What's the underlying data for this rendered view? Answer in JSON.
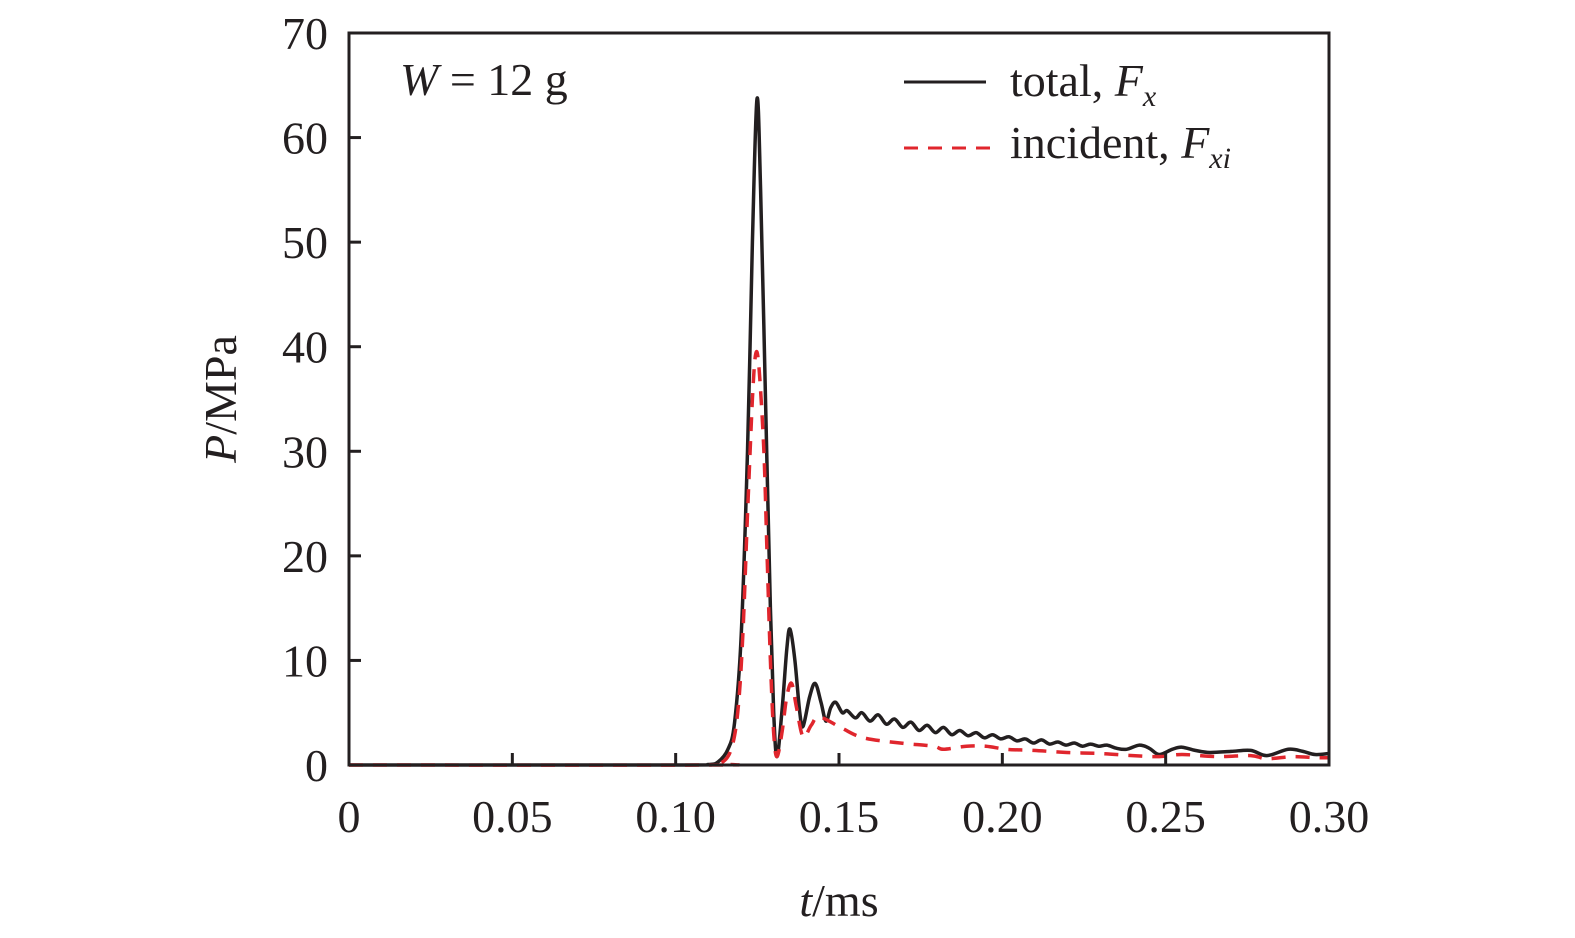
{
  "chart_data": {
    "type": "line",
    "title": "",
    "annotation": {
      "var": "W",
      "rest": " = 12 g"
    },
    "xlabel": {
      "var": "t",
      "rest": "/ms"
    },
    "ylabel": {
      "var": "P",
      "rest": "/MPa"
    },
    "xlim": [
      0,
      0.3
    ],
    "ylim": [
      0,
      70
    ],
    "xticks": [
      0,
      0.05,
      0.1,
      0.15,
      0.2,
      0.25,
      0.3
    ],
    "xtick_labels": [
      "0",
      "0.05",
      "0.10",
      "0.15",
      "0.20",
      "0.25",
      "0.30"
    ],
    "yticks": [
      0,
      10,
      20,
      30,
      40,
      50,
      60,
      70
    ],
    "ytick_labels": [
      "0",
      "10",
      "20",
      "30",
      "40",
      "50",
      "60",
      "70"
    ],
    "grid": false,
    "legend_position": "top-right",
    "series": [
      {
        "legend": {
          "text": "total, ",
          "var": "F",
          "sub": "x"
        },
        "color": "#231f20",
        "style": "solid",
        "x": [
          0,
          0.1,
          0.11,
          0.113,
          0.116,
          0.118,
          0.12,
          0.122,
          0.1235,
          0.1249,
          0.126,
          0.1275,
          0.129,
          0.13,
          0.131,
          0.1325,
          0.134,
          0.135,
          0.1365,
          0.138,
          0.139,
          0.141,
          0.1427,
          0.1445,
          0.146,
          0.1475,
          0.149,
          0.151,
          0.1525,
          0.155,
          0.157,
          0.1595,
          0.162,
          0.1645,
          0.167,
          0.1695,
          0.172,
          0.1745,
          0.177,
          0.1795,
          0.182,
          0.1845,
          0.187,
          0.1895,
          0.192,
          0.1945,
          0.197,
          0.1995,
          0.202,
          0.2045,
          0.207,
          0.2095,
          0.212,
          0.2145,
          0.217,
          0.2195,
          0.222,
          0.2245,
          0.227,
          0.2295,
          0.232,
          0.235,
          0.238,
          0.242,
          0.245,
          0.248,
          0.252,
          0.255,
          0.259,
          0.2635,
          0.27,
          0.276,
          0.281,
          0.2875,
          0.292,
          0.2957,
          0.3
        ],
        "y": [
          0,
          0,
          0.05,
          0.3,
          1.5,
          4,
          12,
          30,
          50,
          63.7,
          55,
          35,
          15,
          5,
          0.8,
          5,
          11,
          13,
          10,
          5,
          3.7,
          6.5,
          7.8,
          6,
          4.2,
          5.5,
          6.0,
          5.0,
          5.2,
          4.5,
          5.0,
          4.2,
          4.8,
          3.9,
          4.4,
          3.6,
          4.1,
          3.3,
          3.8,
          3.1,
          3.6,
          2.9,
          3.3,
          2.8,
          3.1,
          2.6,
          2.9,
          2.5,
          2.7,
          2.3,
          2.5,
          2.1,
          2.4,
          2.0,
          2.2,
          1.9,
          2.1,
          1.8,
          2.0,
          1.8,
          1.9,
          1.6,
          1.5,
          1.9,
          1.6,
          1.0,
          1.5,
          1.7,
          1.4,
          1.2,
          1.3,
          1.4,
          0.9,
          1.5,
          1.3,
          1.0,
          1.1
        ]
      },
      {
        "legend": {
          "text": "incident, ",
          "var": "F",
          "sub": "xi"
        },
        "color": "#e0262d",
        "style": "dashed",
        "x": [
          0,
          0.11,
          0.114,
          0.117,
          0.119,
          0.1205,
          0.122,
          0.1235,
          0.1245,
          0.1255,
          0.127,
          0.128,
          0.129,
          0.13,
          0.131,
          0.1325,
          0.134,
          0.1355,
          0.137,
          0.139,
          0.1415,
          0.144,
          0.151,
          0.1575,
          0.1687,
          0.1788,
          0.182,
          0.189,
          0.195,
          0.2013,
          0.2095,
          0.2197,
          0.23,
          0.24,
          0.248,
          0.255,
          0.266,
          0.276,
          0.281,
          0.289,
          0.296,
          0.3
        ],
        "y": [
          0,
          0,
          0.2,
          1.5,
          5,
          12,
          24,
          35,
          39.3,
          38,
          30,
          20,
          10,
          3,
          0.8,
          3,
          6.5,
          7.8,
          5.5,
          2.7,
          3.8,
          4.6,
          3.5,
          2.6,
          2.1,
          1.8,
          1.5,
          1.8,
          1.8,
          1.5,
          1.4,
          1.2,
          1.1,
          0.9,
          0.8,
          1.0,
          0.8,
          0.9,
          0.6,
          0.8,
          0.7,
          0.7
        ]
      }
    ]
  }
}
